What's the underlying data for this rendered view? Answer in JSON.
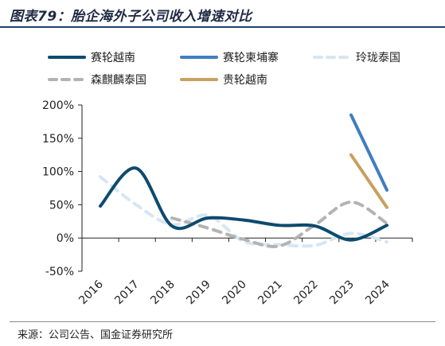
{
  "title": "图表79：胎企海外子公司收入增速对比",
  "source": "来源：公司公告、国金证券研究所",
  "chart_data": {
    "type": "line",
    "title": "",
    "xlabel": "",
    "ylabel": "",
    "categories": [
      "2016",
      "2017",
      "2018",
      "2019",
      "2020",
      "2021",
      "2022",
      "2023",
      "2024"
    ],
    "yticks": [
      "200%",
      "150%",
      "100%",
      "50%",
      "0%",
      "-50%"
    ],
    "ylim": [
      -50,
      200
    ],
    "grid": false,
    "legend_position": "top",
    "series": [
      {
        "name": "赛轮越南",
        "color": "#0e4a6e",
        "dashed": false,
        "values": [
          48,
          105,
          18,
          30,
          27,
          19,
          18,
          -3,
          19
        ]
      },
      {
        "name": "赛轮柬埔寨",
        "color": "#3f7ec2",
        "dashed": false,
        "values": [
          null,
          null,
          null,
          null,
          null,
          null,
          null,
          185,
          72
        ]
      },
      {
        "name": "玲珑泰国",
        "color": "#d6e6f3",
        "dashed": true,
        "values": [
          92,
          50,
          20,
          34,
          -5,
          -10,
          -11,
          7,
          -6
        ]
      },
      {
        "name": "森麒麟泰国",
        "color": "#b3b3b3",
        "dashed": true,
        "values": [
          null,
          null,
          30,
          15,
          -2,
          -12,
          20,
          54,
          22
        ]
      },
      {
        "name": "贵轮越南",
        "color": "#c9a060",
        "dashed": false,
        "values": [
          null,
          null,
          null,
          null,
          null,
          null,
          null,
          125,
          46
        ]
      }
    ]
  }
}
